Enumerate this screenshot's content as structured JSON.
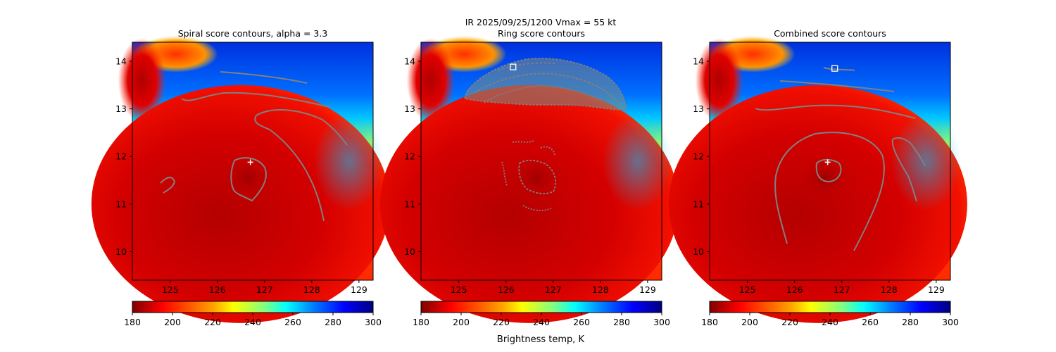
{
  "suptitle": "IR  2025/09/25/1200    Vmax = 55 kt",
  "colorbar_label": "Brightness temp, K",
  "colorbar_ticks": [
    "180",
    "200",
    "220",
    "240",
    "260",
    "280",
    "300"
  ],
  "colorbar_range": [
    180,
    300
  ],
  "colormap": [
    "#800000",
    "#ff0000",
    "#ffa500",
    "#ffff00",
    "#80ff80",
    "#00ffff",
    "#0080ff",
    "#0000ff",
    "#000080"
  ],
  "contour_color": "#808080",
  "chart_data": [
    {
      "type": "heatmap",
      "title": "Spiral score contours, alpha =  3.3",
      "xlim": [
        124.2,
        129.3
      ],
      "ylim": [
        9.4,
        14.4
      ],
      "xticks": [
        "125",
        "126",
        "127",
        "128",
        "129"
      ],
      "yticks": [
        "10",
        "11",
        "12",
        "13",
        "14"
      ],
      "center_marker": [
        126.7,
        11.88
      ],
      "square_marker": null
    },
    {
      "type": "heatmap",
      "title": "Ring score contours",
      "xlim": [
        124.2,
        129.3
      ],
      "ylim": [
        9.4,
        14.4
      ],
      "xticks": [
        "125",
        "126",
        "127",
        "128",
        "129"
      ],
      "yticks": [
        "10",
        "11",
        "12",
        "13",
        "14"
      ],
      "center_marker": null,
      "square_marker": [
        126.15,
        13.88
      ]
    },
    {
      "type": "heatmap",
      "title": "Combined score contours",
      "xlim": [
        124.2,
        129.3
      ],
      "ylim": [
        9.4,
        14.4
      ],
      "xticks": [
        "125",
        "126",
        "127",
        "128",
        "129"
      ],
      "yticks": [
        "10",
        "11",
        "12",
        "13",
        "14"
      ],
      "center_marker": [
        126.7,
        11.88
      ],
      "square_marker": [
        126.85,
        13.85
      ]
    }
  ]
}
